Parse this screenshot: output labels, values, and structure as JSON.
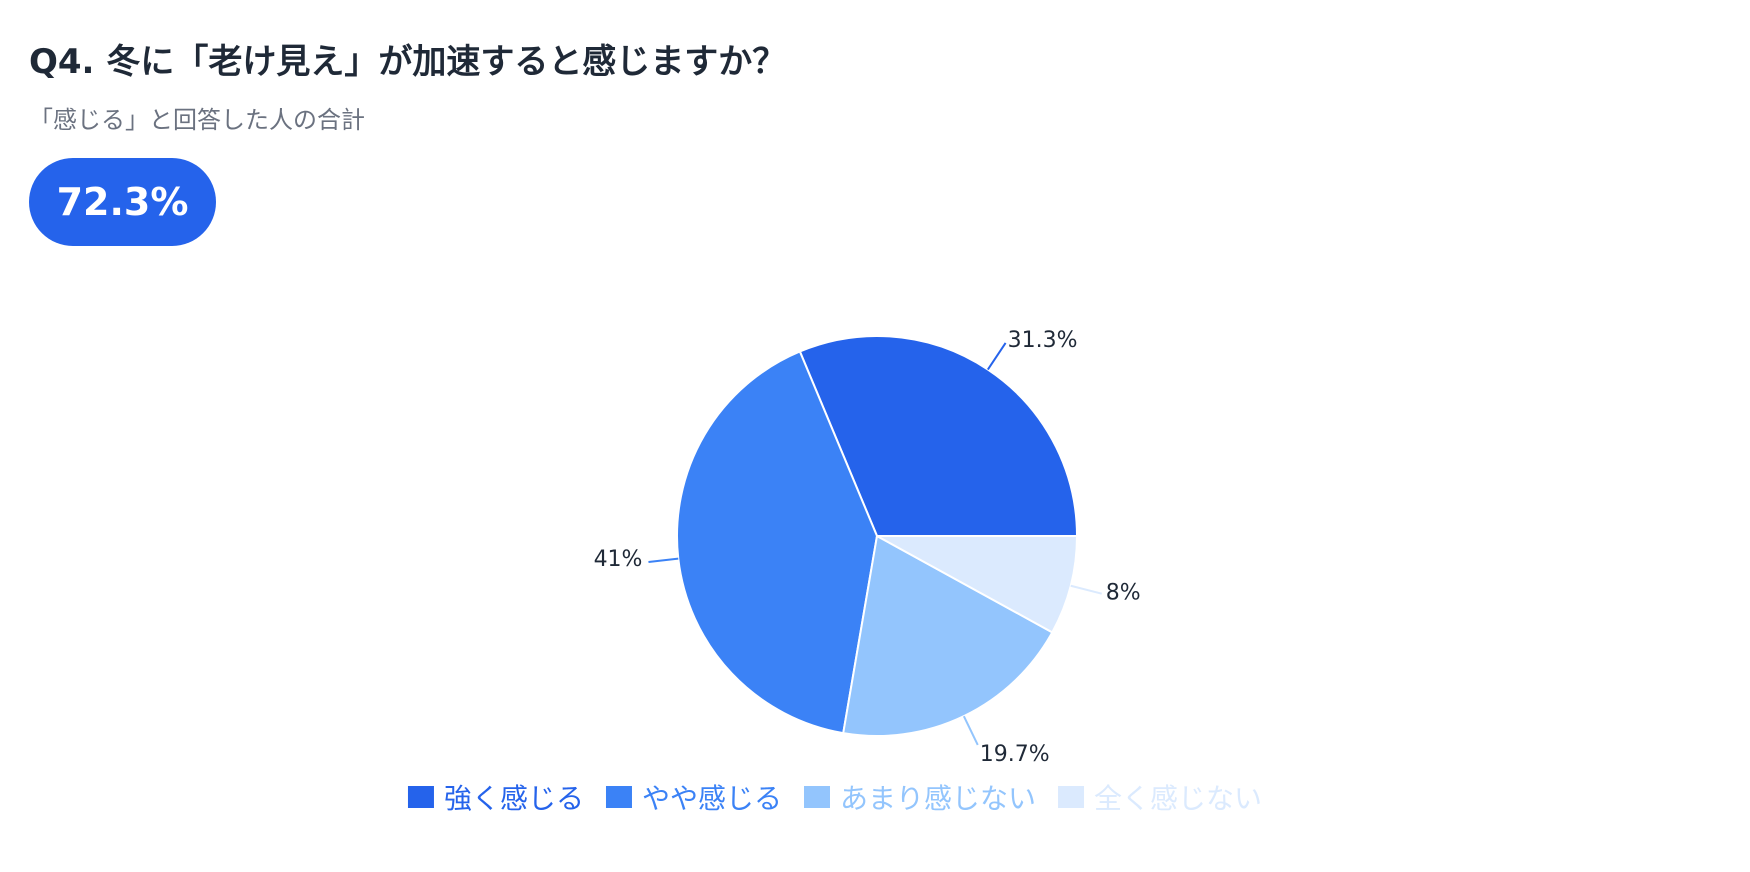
{
  "header": {
    "title": "Q4. 冬に「老け見え」が加速すると感じますか？",
    "subtitle": "「感じる」と回答した人の合計",
    "total_badge": "72.3%"
  },
  "chart_data": {
    "type": "pie",
    "start_angle": "right (3 o'clock), counter-clockwise",
    "legend_position": "bottom-center",
    "slices": [
      {
        "label": "強く感じる",
        "value": 31.3,
        "display": "31.3%",
        "color": "#2563eb"
      },
      {
        "label": "やや感じる",
        "value": 41,
        "display": "41%",
        "color": "#3b82f6"
      },
      {
        "label": "あまり感じない",
        "value": 19.7,
        "display": "19.7%",
        "color": "#93c5fd"
      },
      {
        "label": "全く感じない",
        "value": 8,
        "display": "8%",
        "color": "#dbeafe"
      }
    ]
  }
}
